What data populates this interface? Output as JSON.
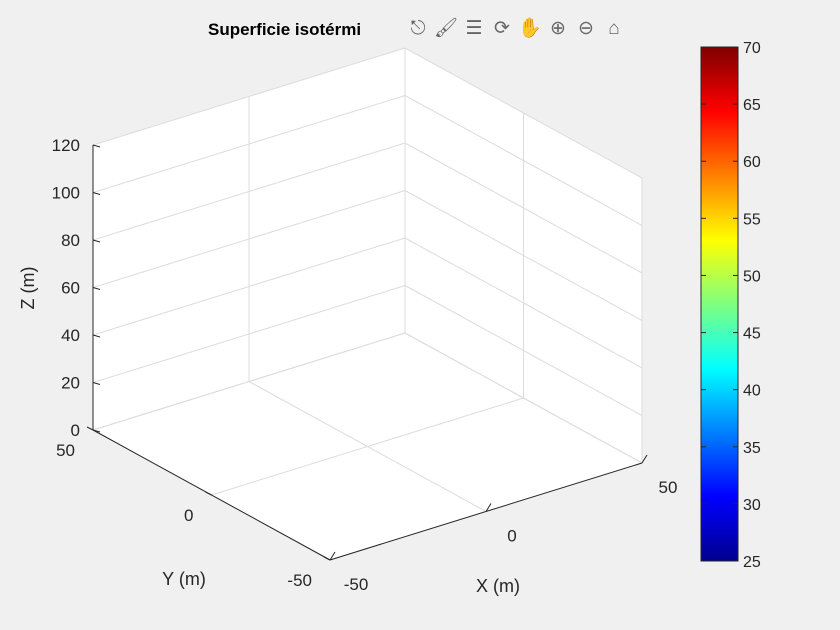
{
  "chart_data": {
    "type": "surface",
    "title": "Superficie isotérmi",
    "xlabel": "X (m)",
    "ylabel": "Y (m)",
    "zlabel": "Z (m)",
    "xlim": [
      -50,
      50
    ],
    "ylim": [
      -50,
      50
    ],
    "zlim": [
      0,
      120
    ],
    "xticks": [
      "-50",
      "0",
      "50"
    ],
    "yticks": [
      "-50",
      "0",
      "50"
    ],
    "zticks": [
      "0",
      "20",
      "40",
      "60",
      "80",
      "100",
      "120"
    ],
    "grid": true,
    "series": [],
    "colorbar": {
      "colormap": "jet",
      "range": [
        25,
        70
      ],
      "ticks": [
        "25",
        "30",
        "35",
        "40",
        "45",
        "50",
        "55",
        "60",
        "65",
        "70"
      ],
      "placement": "right"
    }
  },
  "toolbar": [
    {
      "name": "export-icon",
      "glyph": "⎋"
    },
    {
      "name": "brush-icon",
      "glyph": "🖌"
    },
    {
      "name": "datatip-icon",
      "glyph": "☰"
    },
    {
      "name": "rotate-icon",
      "glyph": "⟳"
    },
    {
      "name": "pan-icon",
      "glyph": "✋"
    },
    {
      "name": "zoom-in-icon",
      "glyph": "⊕"
    },
    {
      "name": "zoom-out-icon",
      "glyph": "⊖"
    },
    {
      "name": "home-icon",
      "glyph": "⌂"
    }
  ]
}
